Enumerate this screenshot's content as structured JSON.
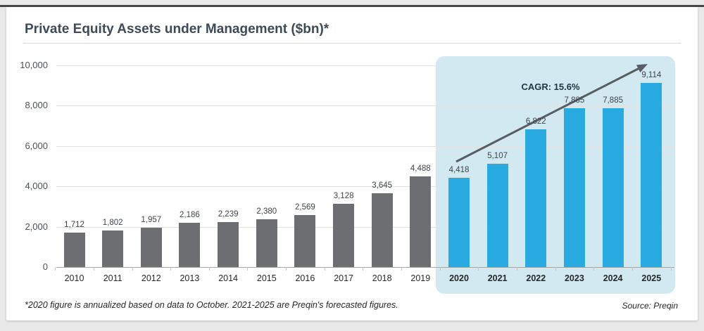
{
  "page": {
    "title": "Private Equity Assets under Management ($bn)*",
    "footnote": "*2020 figure is annualized based on data to October. 2021-2025 are Preqin's forecasted figures.",
    "source": "Source: Preqin"
  },
  "chart_data": {
    "type": "bar",
    "title": "Private Equity Assets under Management ($bn)*",
    "categories": [
      "2010",
      "2011",
      "2012",
      "2013",
      "2014",
      "2015",
      "2016",
      "2017",
      "2018",
      "2019",
      "2020",
      "2021",
      "2022",
      "2023",
      "2024",
      "2025"
    ],
    "values": [
      1712,
      1802,
      1957,
      2186,
      2239,
      2380,
      2569,
      3128,
      3645,
      4488,
      4418,
      5107,
      6822,
      7885,
      7885,
      9114
    ],
    "labels": [
      "1,712",
      "1,802",
      "1,957",
      "2,186",
      "2,239",
      "2,380",
      "2,569",
      "3,128",
      "3,645",
      "4,488",
      "4,418",
      "5,107",
      "6,822",
      "7,885",
      "7,885",
      "9,114"
    ],
    "forecast_start_index": 10,
    "annotation": "CAGR: 15.6%",
    "xlabel": "",
    "ylabel": "",
    "ylim": [
      0,
      10000
    ],
    "yticks": [
      0,
      2000,
      4000,
      6000,
      8000,
      10000
    ],
    "ytick_labels": [
      "0",
      "2,000",
      "4,000",
      "6,000",
      "8,000",
      "10,000"
    ],
    "grid": true,
    "legend": "none",
    "colors": {
      "historical": "#6d6e71",
      "forecast": "#29abe2",
      "highlight_bg": "#d2e9f1",
      "arrow": "#585d63",
      "title": "#3e4a57"
    }
  }
}
